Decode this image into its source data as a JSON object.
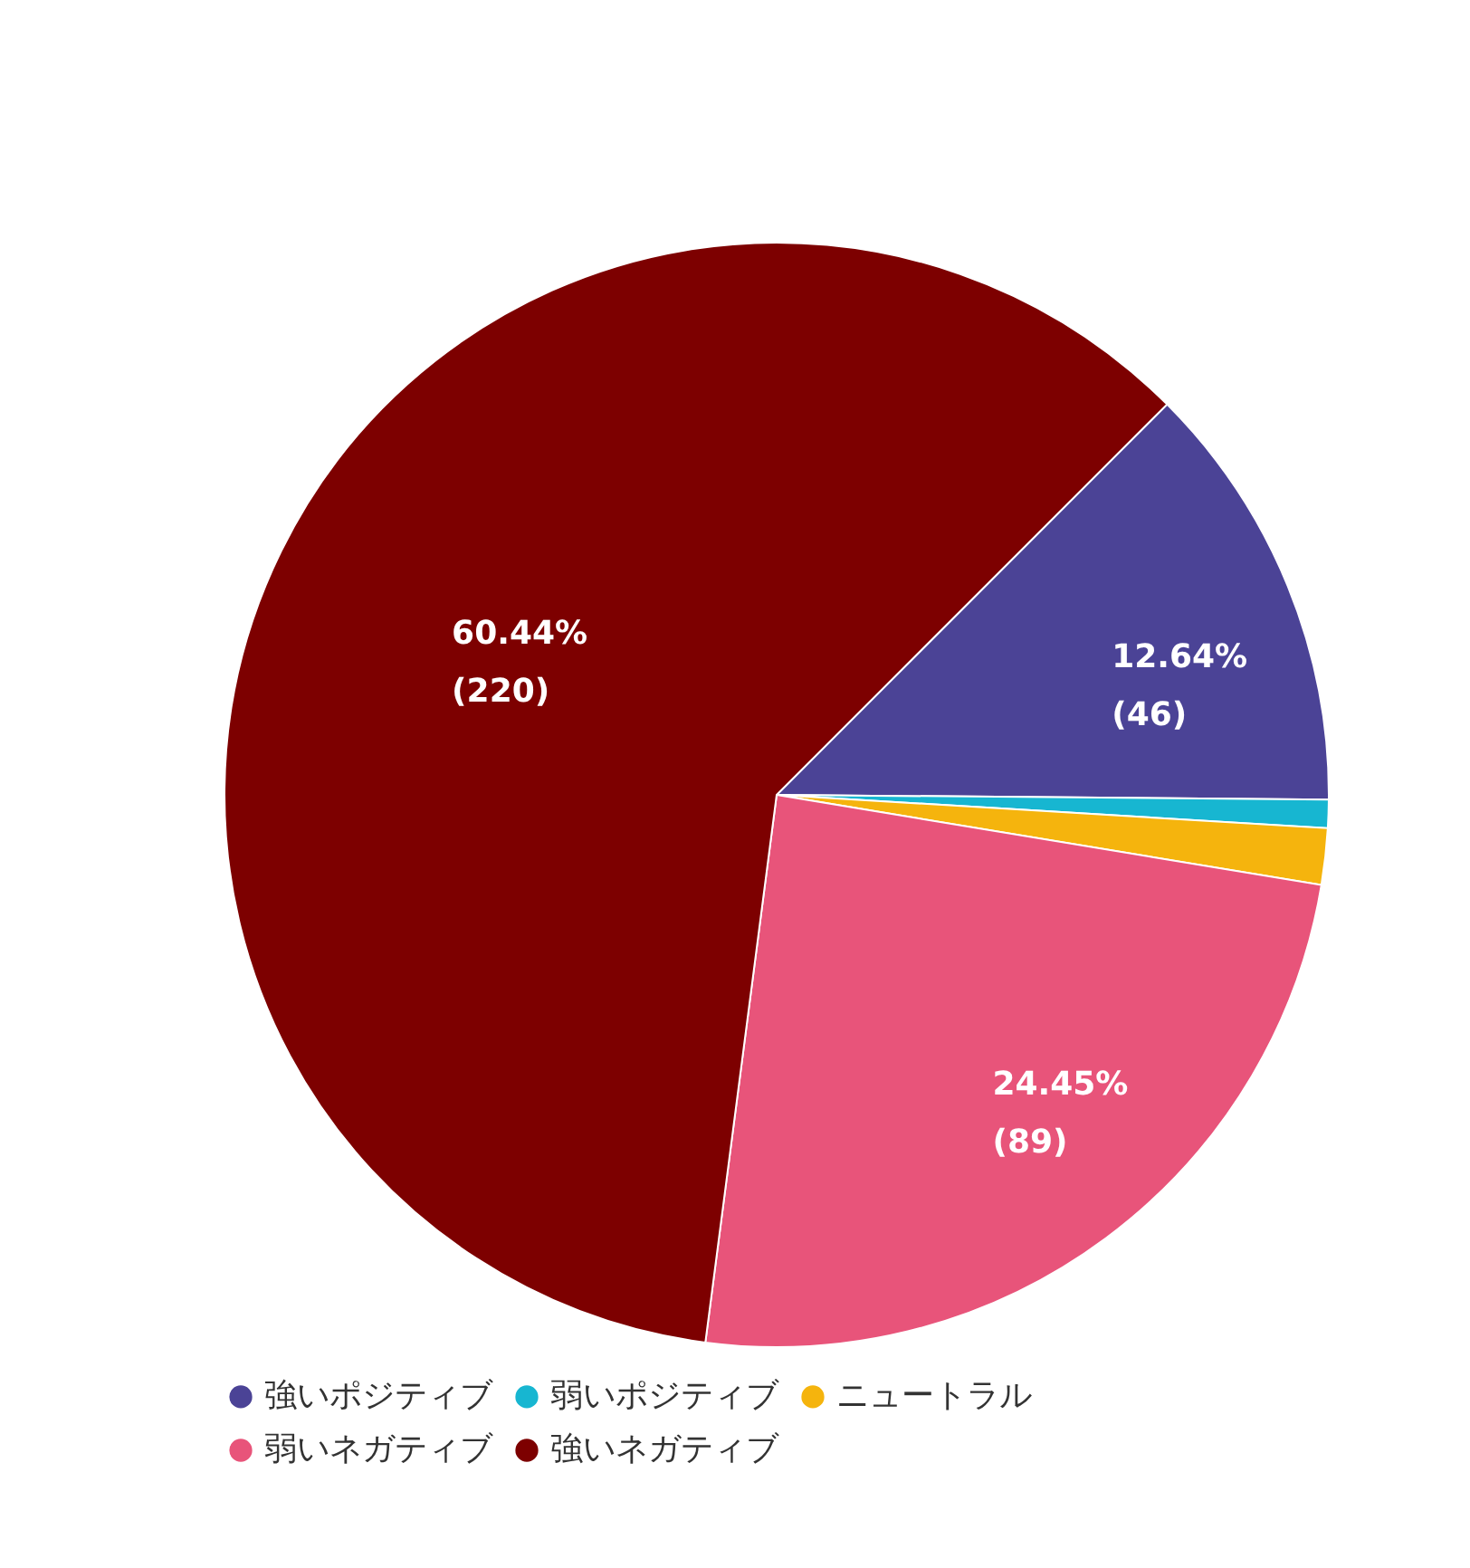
{
  "chart_data": {
    "type": "pie",
    "categories": [
      "強いポジティブ",
      "弱いポジティブ",
      "ニュートラル",
      "弱いネガティブ",
      "強いネガティブ"
    ],
    "values": [
      46,
      3,
      6,
      89,
      220
    ],
    "colors": [
      "#4b4396",
      "#17b6d1",
      "#f5b40d",
      "#e8547a",
      "#7d0000"
    ],
    "value_labels": [
      "12.64%\n(46)",
      null,
      null,
      "24.45%\n(89)",
      "60.44%\n(220)"
    ],
    "legend": "bottom"
  }
}
